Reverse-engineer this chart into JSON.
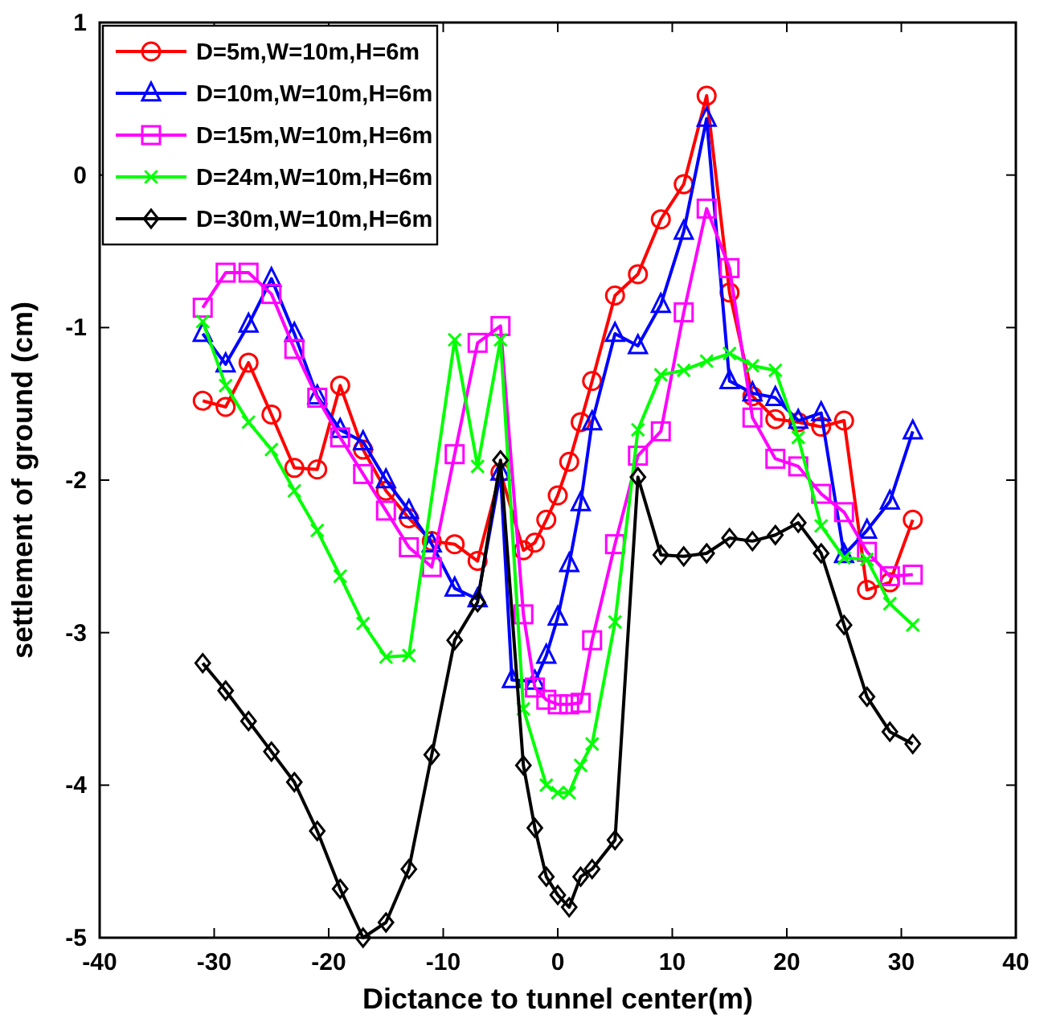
{
  "chart_data": {
    "type": "line",
    "xlabel": "Dictance to tunnel center(m)",
    "ylabel": "settlement of ground (cm)",
    "xlim": [
      -40,
      40
    ],
    "xticks": [
      -40,
      -30,
      -20,
      -10,
      0,
      10,
      20,
      30,
      40
    ],
    "ylim": [
      -5,
      1
    ],
    "yticks": [
      -5,
      -4,
      -3,
      -2,
      -1,
      0,
      1
    ],
    "grid": false,
    "legend": "top left",
    "line_style": "solid",
    "series": [
      {
        "name": "D=5m,W=10m,H=6m",
        "color": "#ff0000",
        "marker": "circle",
        "x": [
          -31,
          -29,
          -27,
          -25,
          -23,
          -21,
          -19,
          -17,
          -15,
          -13,
          -11,
          -9,
          -7,
          -5,
          -3,
          -2,
          -1,
          0,
          1,
          2,
          3,
          5,
          7,
          9,
          11,
          13,
          15,
          17,
          19,
          21,
          23,
          25,
          27,
          29,
          31
        ],
        "values": [
          -1.48,
          -1.52,
          -1.23,
          -1.57,
          -1.92,
          -1.93,
          -1.38,
          -1.8,
          -2.07,
          -2.25,
          -2.4,
          -2.42,
          -2.53,
          -1.95,
          -2.46,
          -2.41,
          -2.26,
          -2.1,
          -1.88,
          -1.62,
          -1.35,
          -0.79,
          -0.65,
          -0.29,
          -0.06,
          0.52,
          -0.77,
          -1.45,
          -1.6,
          -1.62,
          -1.65,
          -1.61,
          -2.72,
          -2.67,
          -2.26
        ]
      },
      {
        "name": "D=10m,W=10m,H=6m",
        "color": "#0000ff",
        "marker": "triangle",
        "x": [
          -31,
          -29,
          -27,
          -25,
          -23,
          -21,
          -19,
          -17,
          -15,
          -13,
          -11,
          -9,
          -7,
          -5,
          -4,
          -2,
          -1,
          0,
          1,
          2,
          3,
          5,
          7,
          9,
          11,
          13,
          15,
          17,
          19,
          21,
          23,
          25,
          27,
          29,
          31
        ],
        "values": [
          -1.04,
          -1.24,
          -0.98,
          -0.68,
          -1.04,
          -1.45,
          -1.67,
          -1.75,
          -2.0,
          -2.2,
          -2.42,
          -2.71,
          -2.78,
          -1.95,
          -3.31,
          -3.32,
          -3.15,
          -2.9,
          -2.55,
          -2.15,
          -1.62,
          -1.04,
          -1.12,
          -0.85,
          -0.37,
          0.37,
          -1.35,
          -1.43,
          -1.46,
          -1.61,
          -1.56,
          -2.49,
          -2.33,
          -2.14,
          -1.68
        ]
      },
      {
        "name": "D=15m,W=10m,H=6m",
        "color": "#ff00ff",
        "marker": "square",
        "x": [
          -31,
          -29,
          -27,
          -25,
          -23,
          -21,
          -19,
          -17,
          -15,
          -13,
          -11,
          -9,
          -7,
          -5,
          -3,
          -2,
          -1,
          0,
          1,
          2,
          3,
          5,
          7,
          9,
          11,
          13,
          15,
          17,
          19,
          21,
          23,
          25,
          27,
          29,
          31
        ],
        "values": [
          -0.87,
          -0.64,
          -0.64,
          -0.78,
          -1.14,
          -1.46,
          -1.72,
          -1.96,
          -2.2,
          -2.44,
          -2.57,
          -1.83,
          -1.1,
          -0.99,
          -2.88,
          -3.36,
          -3.44,
          -3.47,
          -3.47,
          -3.46,
          -3.05,
          -2.42,
          -1.84,
          -1.68,
          -0.9,
          -0.22,
          -0.61,
          -1.59,
          -1.86,
          -1.91,
          -2.09,
          -2.21,
          -2.47,
          -2.63,
          -2.62
        ]
      },
      {
        "name": "D=24m,W=10m,H=6m",
        "color": "#00ff00",
        "marker": "cross",
        "x": [
          -31,
          -29,
          -27,
          -25,
          -23,
          -21,
          -19,
          -17,
          -15,
          -13,
          -9,
          -7,
          -5,
          -3,
          -1,
          0,
          1,
          2,
          3,
          5,
          7,
          9,
          11,
          13,
          15,
          17,
          19,
          21,
          23,
          25,
          27,
          29,
          31
        ],
        "values": [
          -0.96,
          -1.38,
          -1.62,
          -1.8,
          -2.07,
          -2.33,
          -2.63,
          -2.94,
          -3.16,
          -3.15,
          -1.08,
          -1.91,
          -1.08,
          -3.5,
          -4.0,
          -4.05,
          -4.05,
          -3.87,
          -3.73,
          -2.93,
          -1.67,
          -1.31,
          -1.28,
          -1.22,
          -1.17,
          -1.25,
          -1.28,
          -1.72,
          -2.3,
          -2.51,
          -2.52,
          -2.81,
          -2.95
        ]
      },
      {
        "name": "D=30m,W=10m,H=6m",
        "color": "#000000",
        "marker": "diamond",
        "x": [
          -31,
          -29,
          -27,
          -25,
          -23,
          -21,
          -19,
          -17,
          -15,
          -13,
          -11,
          -9,
          -7,
          -5,
          -3,
          -2,
          -1,
          0,
          1,
          2,
          3,
          5,
          7,
          9,
          11,
          13,
          15,
          17,
          19,
          21,
          23,
          25,
          27,
          29,
          31
        ],
        "values": [
          -3.2,
          -3.38,
          -3.58,
          -3.78,
          -3.98,
          -4.3,
          -4.68,
          -5.0,
          -4.9,
          -4.55,
          -3.8,
          -3.05,
          -2.8,
          -1.87,
          -3.87,
          -4.28,
          -4.6,
          -4.72,
          -4.8,
          -4.6,
          -4.55,
          -4.36,
          -1.98,
          -2.49,
          -2.5,
          -2.48,
          -2.38,
          -2.4,
          -2.36,
          -2.28,
          -2.48,
          -2.95,
          -3.42,
          -3.65,
          -3.73
        ]
      }
    ]
  }
}
